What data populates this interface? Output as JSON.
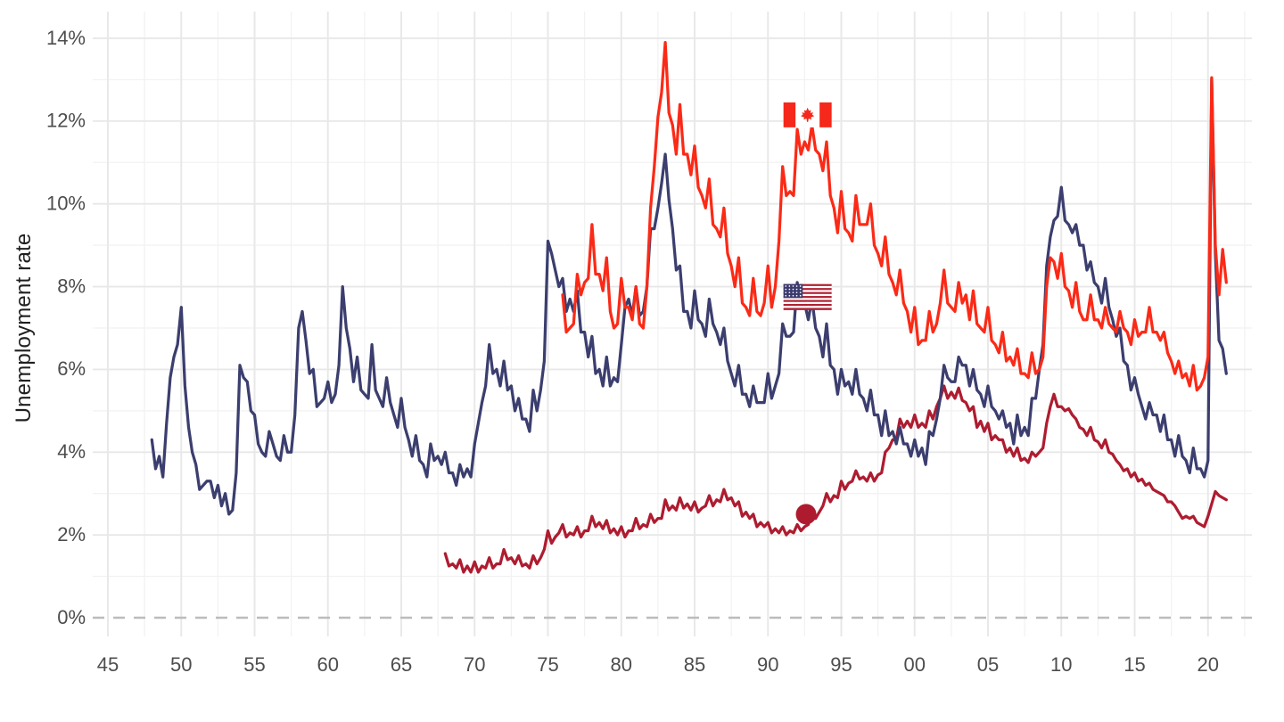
{
  "page": {
    "background": "#ffffff"
  },
  "y_axis": {
    "title": "Unemployment rate",
    "tick_labels": [
      "0%",
      "2%",
      "4%",
      "6%",
      "8%",
      "10%",
      "12%",
      "14%"
    ],
    "tick_values": [
      0,
      2,
      4,
      6,
      8,
      10,
      12,
      14
    ],
    "minor_values": [
      1,
      3,
      5,
      7,
      9,
      11,
      13
    ],
    "zero_line_dashed": true
  },
  "x_axis": {
    "tick_labels": [
      "45",
      "50",
      "55",
      "60",
      "65",
      "70",
      "75",
      "80",
      "85",
      "90",
      "95",
      "00",
      "05",
      "10",
      "15",
      "20"
    ],
    "tick_years": [
      1945,
      1950,
      1955,
      1960,
      1965,
      1970,
      1975,
      1980,
      1985,
      1990,
      1995,
      2000,
      2005,
      2010,
      2015,
      2020
    ],
    "minor_years": [
      1947.5,
      1952.5,
      1957.5,
      1962.5,
      1967.5,
      1972.5,
      1977.5,
      1982.5,
      1987.5,
      1992.5,
      1997.5,
      2002.5,
      2007.5,
      2012.5,
      2017.5,
      2022.5
    ]
  },
  "styles": {
    "grid_major": "#e8e8e8",
    "grid_minor": "#f2f2f2",
    "zero_line": "#bcbcbc",
    "tick_text": "#4d4d4d",
    "axis_title_text": "#1f1f1f",
    "line_width": 3.25
  },
  "flags": {
    "canada": {
      "red": "#f5281b",
      "white": "#ffffff"
    },
    "us": {
      "blue": "#3c3b6e",
      "red": "#b22234",
      "white": "#ffffff"
    },
    "japan": {
      "disc": "#ae1b2f"
    }
  },
  "chart_data": {
    "type": "line",
    "ylabel": "Unemployment rate",
    "x_unit": "year (quarterly points, two-digit year tick labels)",
    "ylim": [
      0,
      14.6
    ],
    "xlim": [
      1945,
      2022.5
    ],
    "grid": true,
    "legend": "flag markers placed on lines near 1992",
    "series": [
      {
        "name": "Japan",
        "color": "#ae1c30",
        "start_year": 1968,
        "step": 0.25,
        "values": [
          1.55,
          1.25,
          1.3,
          1.2,
          1.4,
          1.1,
          1.25,
          1.1,
          1.35,
          1.1,
          1.25,
          1.2,
          1.45,
          1.2,
          1.3,
          1.3,
          1.65,
          1.4,
          1.45,
          1.3,
          1.5,
          1.25,
          1.3,
          1.2,
          1.5,
          1.3,
          1.45,
          1.65,
          2.1,
          1.8,
          1.95,
          2.05,
          2.25,
          1.95,
          2.05,
          2.0,
          2.2,
          1.95,
          2.1,
          2.1,
          2.45,
          2.2,
          2.3,
          2.15,
          2.35,
          2.05,
          2.15,
          2.0,
          2.2,
          1.95,
          2.1,
          2.1,
          2.4,
          2.15,
          2.25,
          2.2,
          2.5,
          2.3,
          2.4,
          2.4,
          2.85,
          2.6,
          2.7,
          2.6,
          2.9,
          2.65,
          2.75,
          2.6,
          2.8,
          2.55,
          2.65,
          2.7,
          2.95,
          2.7,
          2.85,
          2.8,
          3.1,
          2.85,
          2.9,
          2.7,
          2.8,
          2.45,
          2.55,
          2.4,
          2.5,
          2.2,
          2.3,
          2.2,
          2.3,
          2.05,
          2.15,
          2.05,
          2.2,
          2.0,
          2.1,
          2.05,
          2.25,
          2.1,
          2.2,
          2.25,
          2.5,
          2.4,
          2.55,
          2.7,
          3.0,
          2.8,
          2.95,
          2.9,
          3.3,
          3.1,
          3.25,
          3.3,
          3.55,
          3.35,
          3.4,
          3.3,
          3.5,
          3.3,
          3.45,
          3.5,
          4.0,
          4.1,
          4.3,
          4.3,
          4.8,
          4.6,
          4.75,
          4.6,
          4.9,
          4.6,
          4.7,
          4.6,
          5.0,
          4.8,
          5.1,
          5.3,
          5.6,
          5.3,
          5.45,
          5.3,
          5.55,
          5.25,
          5.2,
          5.0,
          5.1,
          4.6,
          4.75,
          4.5,
          4.7,
          4.3,
          4.4,
          4.3,
          4.3,
          4.0,
          4.1,
          3.9,
          4.1,
          3.8,
          3.85,
          3.75,
          4.0,
          3.9,
          4.0,
          4.1,
          4.7,
          5.1,
          5.4,
          5.1,
          5.1,
          5.0,
          5.05,
          4.9,
          4.8,
          4.6,
          4.55,
          4.4,
          4.6,
          4.3,
          4.25,
          4.1,
          4.3,
          4.0,
          3.95,
          3.8,
          3.7,
          3.55,
          3.6,
          3.4,
          3.5,
          3.3,
          3.35,
          3.2,
          3.25,
          3.1,
          3.05,
          3.0,
          2.95,
          2.8,
          2.8,
          2.7,
          2.55,
          2.4,
          2.45,
          2.4,
          2.45,
          2.3,
          2.25,
          2.2,
          2.45,
          2.75,
          3.05,
          2.95,
          2.9,
          2.85
        ]
      },
      {
        "name": "United States",
        "color": "#3b3e6e",
        "start_year": 1948,
        "step": 0.25,
        "values": [
          4.3,
          3.6,
          3.9,
          3.4,
          4.7,
          5.8,
          6.3,
          6.6,
          7.5,
          5.6,
          4.6,
          4.0,
          3.7,
          3.1,
          3.2,
          3.3,
          3.3,
          2.9,
          3.2,
          2.7,
          3.0,
          2.5,
          2.6,
          3.5,
          6.1,
          5.8,
          5.7,
          5.0,
          4.9,
          4.2,
          4.0,
          3.9,
          4.5,
          4.2,
          3.9,
          3.8,
          4.4,
          4.0,
          4.0,
          4.9,
          7.0,
          7.4,
          6.7,
          5.9,
          6.0,
          5.1,
          5.2,
          5.3,
          5.7,
          5.2,
          5.4,
          6.1,
          8.0,
          7.0,
          6.5,
          5.7,
          6.3,
          5.5,
          5.4,
          5.3,
          6.6,
          5.5,
          5.3,
          5.1,
          5.8,
          5.2,
          4.9,
          4.6,
          5.3,
          4.6,
          4.3,
          3.9,
          4.4,
          3.8,
          3.7,
          3.4,
          4.2,
          3.8,
          3.9,
          3.7,
          4.0,
          3.5,
          3.5,
          3.2,
          3.7,
          3.4,
          3.6,
          3.4,
          4.2,
          4.7,
          5.2,
          5.6,
          6.6,
          5.9,
          6.0,
          5.6,
          6.2,
          5.5,
          5.6,
          5.0,
          5.3,
          4.8,
          4.8,
          4.5,
          5.5,
          5.0,
          5.5,
          6.2,
          9.1,
          8.8,
          8.4,
          8.0,
          8.2,
          7.4,
          7.7,
          7.4,
          7.9,
          6.9,
          6.9,
          6.3,
          6.8,
          5.9,
          6.0,
          5.6,
          6.3,
          5.6,
          5.8,
          5.7,
          6.6,
          7.5,
          7.7,
          7.3,
          8.0,
          7.3,
          7.4,
          8.0,
          9.4,
          9.4,
          9.9,
          10.5,
          11.2,
          10.1,
          9.4,
          8.4,
          8.5,
          7.4,
          7.4,
          7.0,
          7.9,
          7.2,
          7.1,
          6.8,
          7.7,
          7.1,
          6.9,
          6.6,
          7.0,
          6.2,
          5.9,
          5.6,
          6.1,
          5.4,
          5.4,
          5.1,
          5.6,
          5.2,
          5.2,
          5.2,
          5.9,
          5.3,
          5.6,
          5.9,
          7.1,
          6.8,
          6.8,
          6.9,
          8.1,
          7.5,
          7.6,
          7.2,
          7.7,
          7.0,
          6.8,
          6.3,
          7.1,
          6.1,
          6.0,
          5.4,
          6.0,
          5.6,
          5.7,
          5.4,
          6.0,
          5.4,
          5.3,
          5.0,
          5.5,
          4.9,
          4.9,
          4.4,
          5.0,
          4.4,
          4.5,
          4.2,
          4.6,
          4.2,
          4.2,
          3.9,
          4.3,
          3.9,
          4.1,
          3.7,
          4.5,
          4.4,
          4.8,
          5.3,
          6.1,
          5.8,
          5.7,
          5.7,
          6.3,
          6.1,
          6.1,
          5.6,
          6.0,
          5.5,
          5.4,
          5.1,
          5.6,
          5.1,
          5.0,
          4.8,
          5.0,
          4.6,
          4.7,
          4.2,
          4.9,
          4.4,
          4.6,
          4.4,
          5.3,
          5.3,
          6.0,
          6.6,
          8.5,
          9.2,
          9.6,
          9.7,
          10.4,
          9.6,
          9.5,
          9.3,
          9.5,
          9.0,
          9.0,
          8.4,
          8.6,
          8.1,
          8.0,
          7.6,
          8.2,
          7.5,
          7.2,
          6.8,
          7.0,
          6.2,
          6.1,
          5.5,
          5.8,
          5.4,
          5.1,
          4.8,
          5.2,
          4.9,
          4.9,
          4.5,
          4.9,
          4.3,
          4.3,
          3.9,
          4.4,
          3.9,
          3.8,
          3.5,
          4.1,
          3.6,
          3.6,
          3.4,
          3.8,
          13.0,
          8.8,
          6.7,
          6.5,
          5.9
        ]
      },
      {
        "name": "Canada",
        "color": "#fb2a17",
        "start_year": 1976,
        "step": 0.25,
        "values": [
          7.8,
          6.9,
          7.0,
          7.1,
          8.3,
          7.8,
          8.1,
          8.2,
          9.5,
          8.3,
          8.3,
          7.9,
          8.7,
          7.4,
          7.0,
          7.1,
          8.2,
          7.5,
          7.5,
          7.2,
          8.0,
          7.1,
          7.0,
          8.0,
          9.9,
          10.9,
          12.1,
          12.7,
          13.9,
          12.2,
          11.9,
          11.2,
          12.4,
          11.2,
          11.2,
          10.7,
          11.4,
          10.4,
          10.2,
          9.9,
          10.6,
          9.5,
          9.4,
          9.2,
          9.9,
          8.8,
          8.5,
          8.0,
          8.7,
          7.6,
          7.5,
          7.3,
          8.2,
          7.4,
          7.3,
          7.6,
          8.5,
          7.5,
          8.0,
          9.1,
          10.9,
          10.2,
          10.3,
          10.2,
          11.8,
          11.2,
          11.5,
          11.3,
          11.9,
          11.3,
          11.2,
          10.8,
          11.5,
          10.2,
          9.9,
          9.3,
          10.3,
          9.4,
          9.3,
          9.1,
          10.2,
          9.5,
          9.5,
          9.5,
          10.0,
          9.0,
          8.8,
          8.5,
          9.2,
          8.3,
          8.1,
          7.8,
          8.4,
          7.6,
          7.4,
          6.9,
          7.5,
          6.6,
          6.7,
          6.7,
          7.4,
          6.9,
          7.1,
          7.6,
          8.4,
          7.6,
          7.5,
          7.4,
          8.1,
          7.6,
          7.8,
          7.2,
          7.9,
          7.1,
          7.0,
          6.9,
          7.5,
          6.7,
          6.6,
          6.4,
          6.9,
          6.2,
          6.3,
          6.1,
          6.5,
          5.9,
          5.9,
          5.8,
          6.4,
          5.9,
          6.0,
          6.3,
          8.0,
          8.7,
          8.6,
          8.2,
          8.8,
          8.0,
          7.9,
          7.5,
          8.1,
          7.4,
          7.2,
          7.2,
          7.8,
          7.2,
          7.2,
          7.0,
          7.5,
          7.1,
          7.0,
          6.9,
          7.4,
          7.0,
          6.9,
          6.6,
          7.2,
          6.8,
          6.9,
          6.9,
          7.5,
          6.9,
          6.9,
          6.7,
          6.9,
          6.4,
          6.2,
          5.9,
          6.2,
          5.8,
          5.9,
          5.6,
          6.1,
          5.5,
          5.6,
          5.8,
          6.3,
          13.05,
          9.0,
          7.8,
          8.9,
          8.1
        ]
      }
    ],
    "markers": [
      {
        "series": "Canada",
        "type": "canada-flag",
        "year": 1992.7,
        "value": 12.15
      },
      {
        "series": "United States",
        "type": "us-flag",
        "year": 1992.7,
        "value": 7.75
      },
      {
        "series": "Japan",
        "type": "japan-disc",
        "year": 1992.6,
        "value": 2.5
      }
    ]
  }
}
